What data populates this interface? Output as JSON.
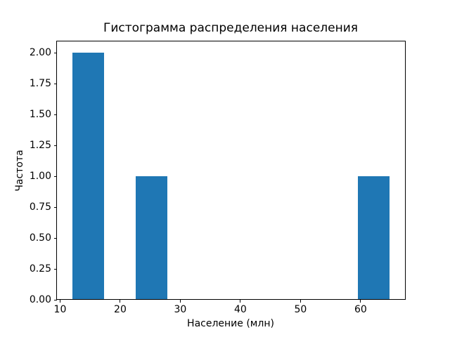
{
  "chart_data": {
    "type": "bar",
    "subtype": "histogram",
    "title": "Гистограмма распределения населения",
    "xlabel": "Население (млн)",
    "ylabel": "Частота",
    "bar_color": "#1f77b4",
    "background_color": "#ffffff",
    "bin_edges": [
      12.0,
      17.28,
      22.56,
      27.84,
      33.12,
      38.4,
      43.68,
      48.96,
      54.24,
      59.52,
      64.8
    ],
    "counts": [
      2,
      0,
      1,
      0,
      0,
      0,
      0,
      0,
      0,
      1
    ],
    "xlim": [
      9.36,
      67.44
    ],
    "ylim": [
      0,
      2.1
    ],
    "xticks": [
      10,
      20,
      30,
      40,
      50,
      60
    ],
    "xtick_labels": [
      "10",
      "20",
      "30",
      "40",
      "50",
      "60"
    ],
    "yticks": [
      0,
      0.25,
      0.5,
      0.75,
      1.0,
      1.25,
      1.5,
      1.75,
      2.0
    ],
    "ytick_labels": [
      "0.00",
      "0.25",
      "0.50",
      "0.75",
      "1.00",
      "1.25",
      "1.50",
      "1.75",
      "2.00"
    ],
    "grid": false,
    "legend": null
  }
}
